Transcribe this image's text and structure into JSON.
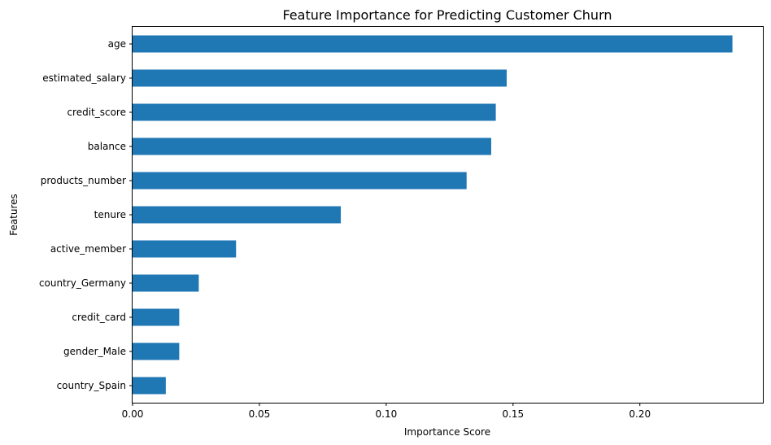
{
  "chart_data": {
    "type": "bar",
    "orientation": "horizontal",
    "title": "Feature Importance for Predicting Customer Churn",
    "xlabel": "Importance Score",
    "ylabel": "Features",
    "xlim": [
      0,
      0.2485
    ],
    "xticks": [
      0.0,
      0.05,
      0.1,
      0.15,
      0.2
    ],
    "xtick_labels": [
      "0.00",
      "0.05",
      "0.10",
      "0.15",
      "0.20"
    ],
    "categories": [
      "age",
      "estimated_salary",
      "credit_score",
      "balance",
      "products_number",
      "tenure",
      "active_member",
      "country_Germany",
      "credit_card",
      "gender_Male",
      "country_Spain"
    ],
    "values": [
      0.2365,
      0.1475,
      0.1432,
      0.1414,
      0.1317,
      0.0821,
      0.0408,
      0.0261,
      0.0184,
      0.0184,
      0.0131
    ],
    "bar_color": "#1f77b4",
    "grid": false
  }
}
